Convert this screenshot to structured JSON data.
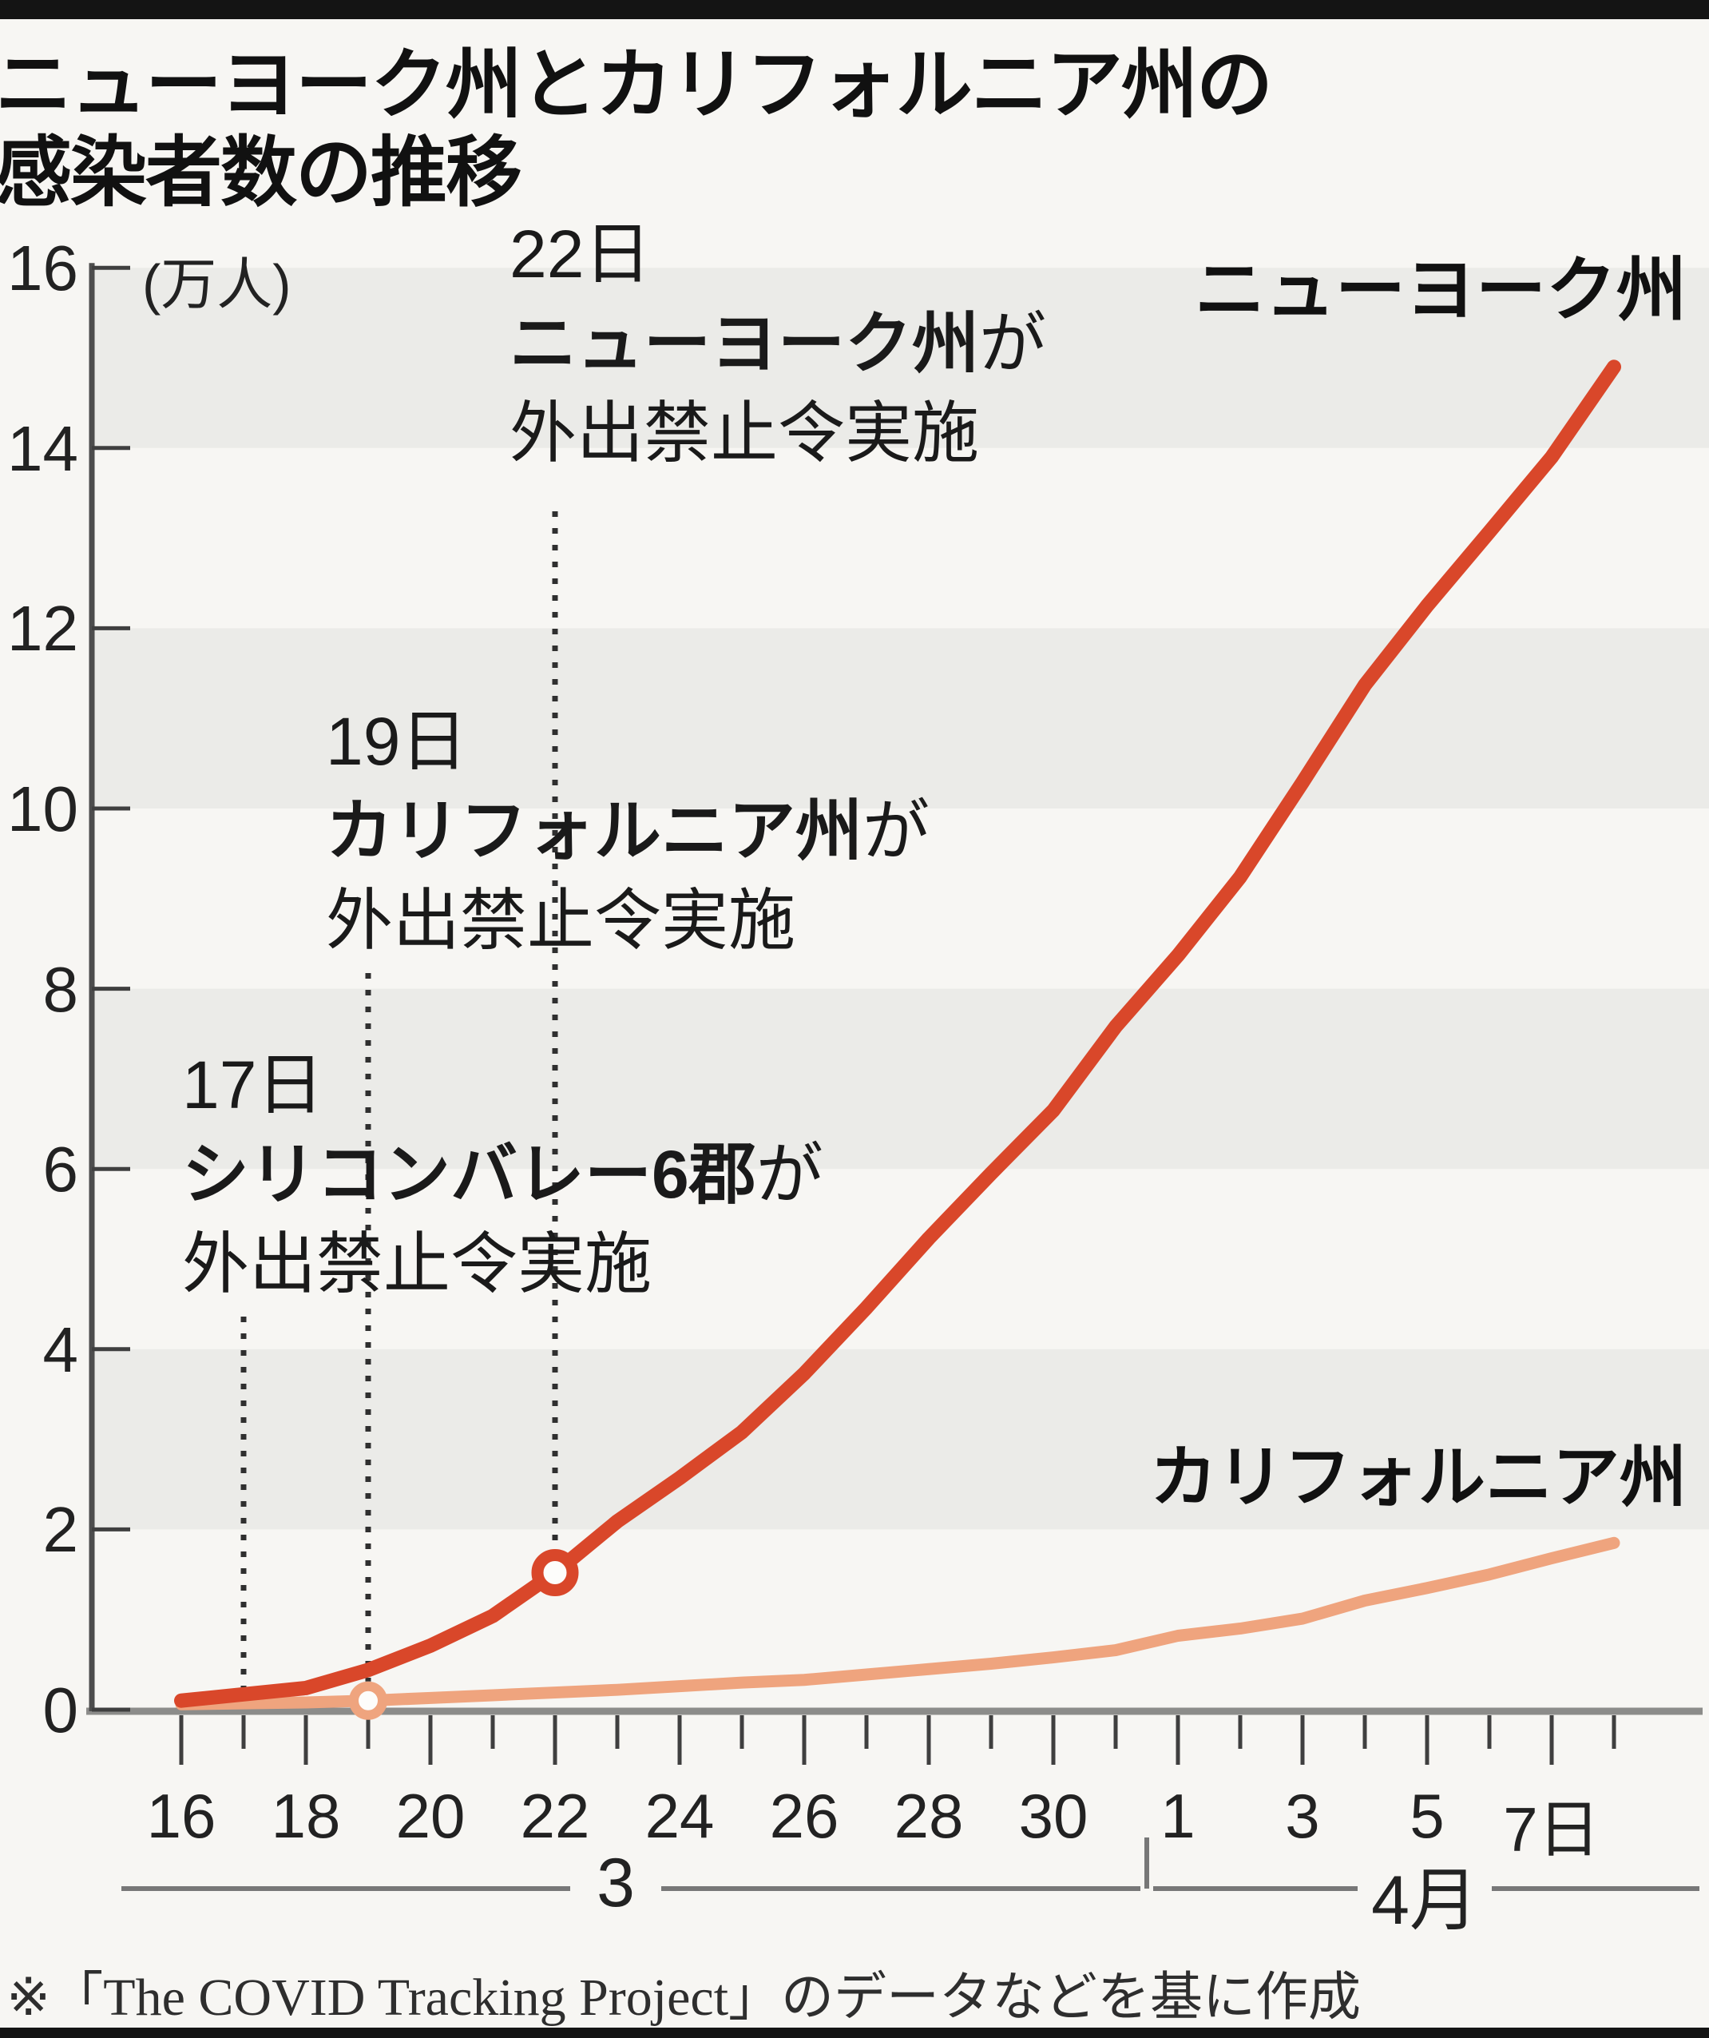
{
  "title": {
    "line1": "ニューヨーク州とカリフォルニア州の",
    "line2": "感染者数の推移"
  },
  "axis": {
    "unit_label": "(万人)",
    "month_labels": [
      "3",
      "4月"
    ]
  },
  "series_labels": {
    "ny": "ニューヨーク州",
    "ca": "カリフォルニア州"
  },
  "annotations": [
    {
      "date": "22日",
      "subject": "ニューヨーク州",
      "particle": "が",
      "action": "外出禁止令実施",
      "day": 22,
      "marker_series": "ny"
    },
    {
      "date": "19日",
      "subject": "カリフォルニア州",
      "particle": "が",
      "action": "外出禁止令実施",
      "day": 19,
      "marker_series": "ca"
    },
    {
      "date": "17日",
      "subject": "シリコンバレー6郡",
      "particle": "が",
      "action": "外出禁止令実施",
      "day": 17,
      "marker_series": null
    }
  ],
  "footer": "※「The COVID Tracking Project」のデータなどを基に作成",
  "colors": {
    "ny_line": "#d9472a",
    "ca_line": "#efa47e",
    "band": "#ebebe8",
    "background": "#f7f6f3",
    "dotted": "#2f2f2f",
    "axis": "#4d4d4d",
    "baseline": "#8c8c8a",
    "frame_bar": "#141414"
  },
  "chart_data": {
    "type": "line",
    "title": "ニューヨーク州とカリフォルニア州の感染者数の推移",
    "ylabel": "(万人)",
    "ylim": [
      0,
      16
    ],
    "y_ticks": [
      0,
      2,
      4,
      6,
      8,
      10,
      12,
      14,
      16
    ],
    "gray_bands": [
      [
        14,
        16
      ],
      [
        10,
        12
      ],
      [
        6,
        8
      ],
      [
        2,
        4
      ]
    ],
    "x": [
      "3/16",
      "3/17",
      "3/18",
      "3/19",
      "3/20",
      "3/21",
      "3/22",
      "3/23",
      "3/24",
      "3/25",
      "3/26",
      "3/27",
      "3/28",
      "3/29",
      "3/30",
      "3/31",
      "4/1",
      "4/2",
      "4/3",
      "4/4",
      "4/5",
      "4/6",
      "4/7",
      "4/8"
    ],
    "x_days": [
      16,
      17,
      18,
      19,
      20,
      21,
      22,
      23,
      24,
      25,
      26,
      27,
      28,
      29,
      30,
      31,
      32,
      33,
      34,
      35,
      36,
      37,
      38,
      39
    ],
    "x_tick_labels": [
      {
        "day": 16,
        "label": "16"
      },
      {
        "day": 18,
        "label": "18"
      },
      {
        "day": 20,
        "label": "20"
      },
      {
        "day": 22,
        "label": "22"
      },
      {
        "day": 24,
        "label": "24"
      },
      {
        "day": 26,
        "label": "26"
      },
      {
        "day": 28,
        "label": "28"
      },
      {
        "day": 30,
        "label": "30"
      },
      {
        "day": 32,
        "label": "1"
      },
      {
        "day": 34,
        "label": "3"
      },
      {
        "day": 36,
        "label": "5"
      },
      {
        "day": 38,
        "label": "7日"
      }
    ],
    "series": [
      {
        "id": "ny",
        "name": "ニューヨーク州",
        "color": "#d9472a",
        "values": [
          0.1,
          0.17,
          0.24,
          0.44,
          0.71,
          1.04,
          1.52,
          2.09,
          2.57,
          3.08,
          3.73,
          4.46,
          5.23,
          5.95,
          6.65,
          7.58,
          8.37,
          9.24,
          10.29,
          11.37,
          12.25,
          13.07,
          13.9,
          14.9
        ]
      },
      {
        "id": "ca",
        "name": "カリフォルニア州",
        "color": "#efa47e",
        "values": [
          0.06,
          0.07,
          0.08,
          0.1,
          0.13,
          0.16,
          0.19,
          0.22,
          0.26,
          0.3,
          0.33,
          0.39,
          0.45,
          0.51,
          0.58,
          0.66,
          0.82,
          0.9,
          1.01,
          1.21,
          1.35,
          1.5,
          1.68,
          1.85
        ]
      }
    ],
    "event_markers": [
      {
        "day": 22,
        "series": "ny",
        "label": "22日 ニューヨーク州が外出禁止令実施"
      },
      {
        "day": 19,
        "series": "ca",
        "label": "19日 カリフォルニア州が外出禁止令実施"
      },
      {
        "day": 17,
        "series": null,
        "label": "17日 シリコンバレー6郡が外出禁止令実施"
      }
    ],
    "legend_position": "on-chart",
    "grid": "banded"
  }
}
